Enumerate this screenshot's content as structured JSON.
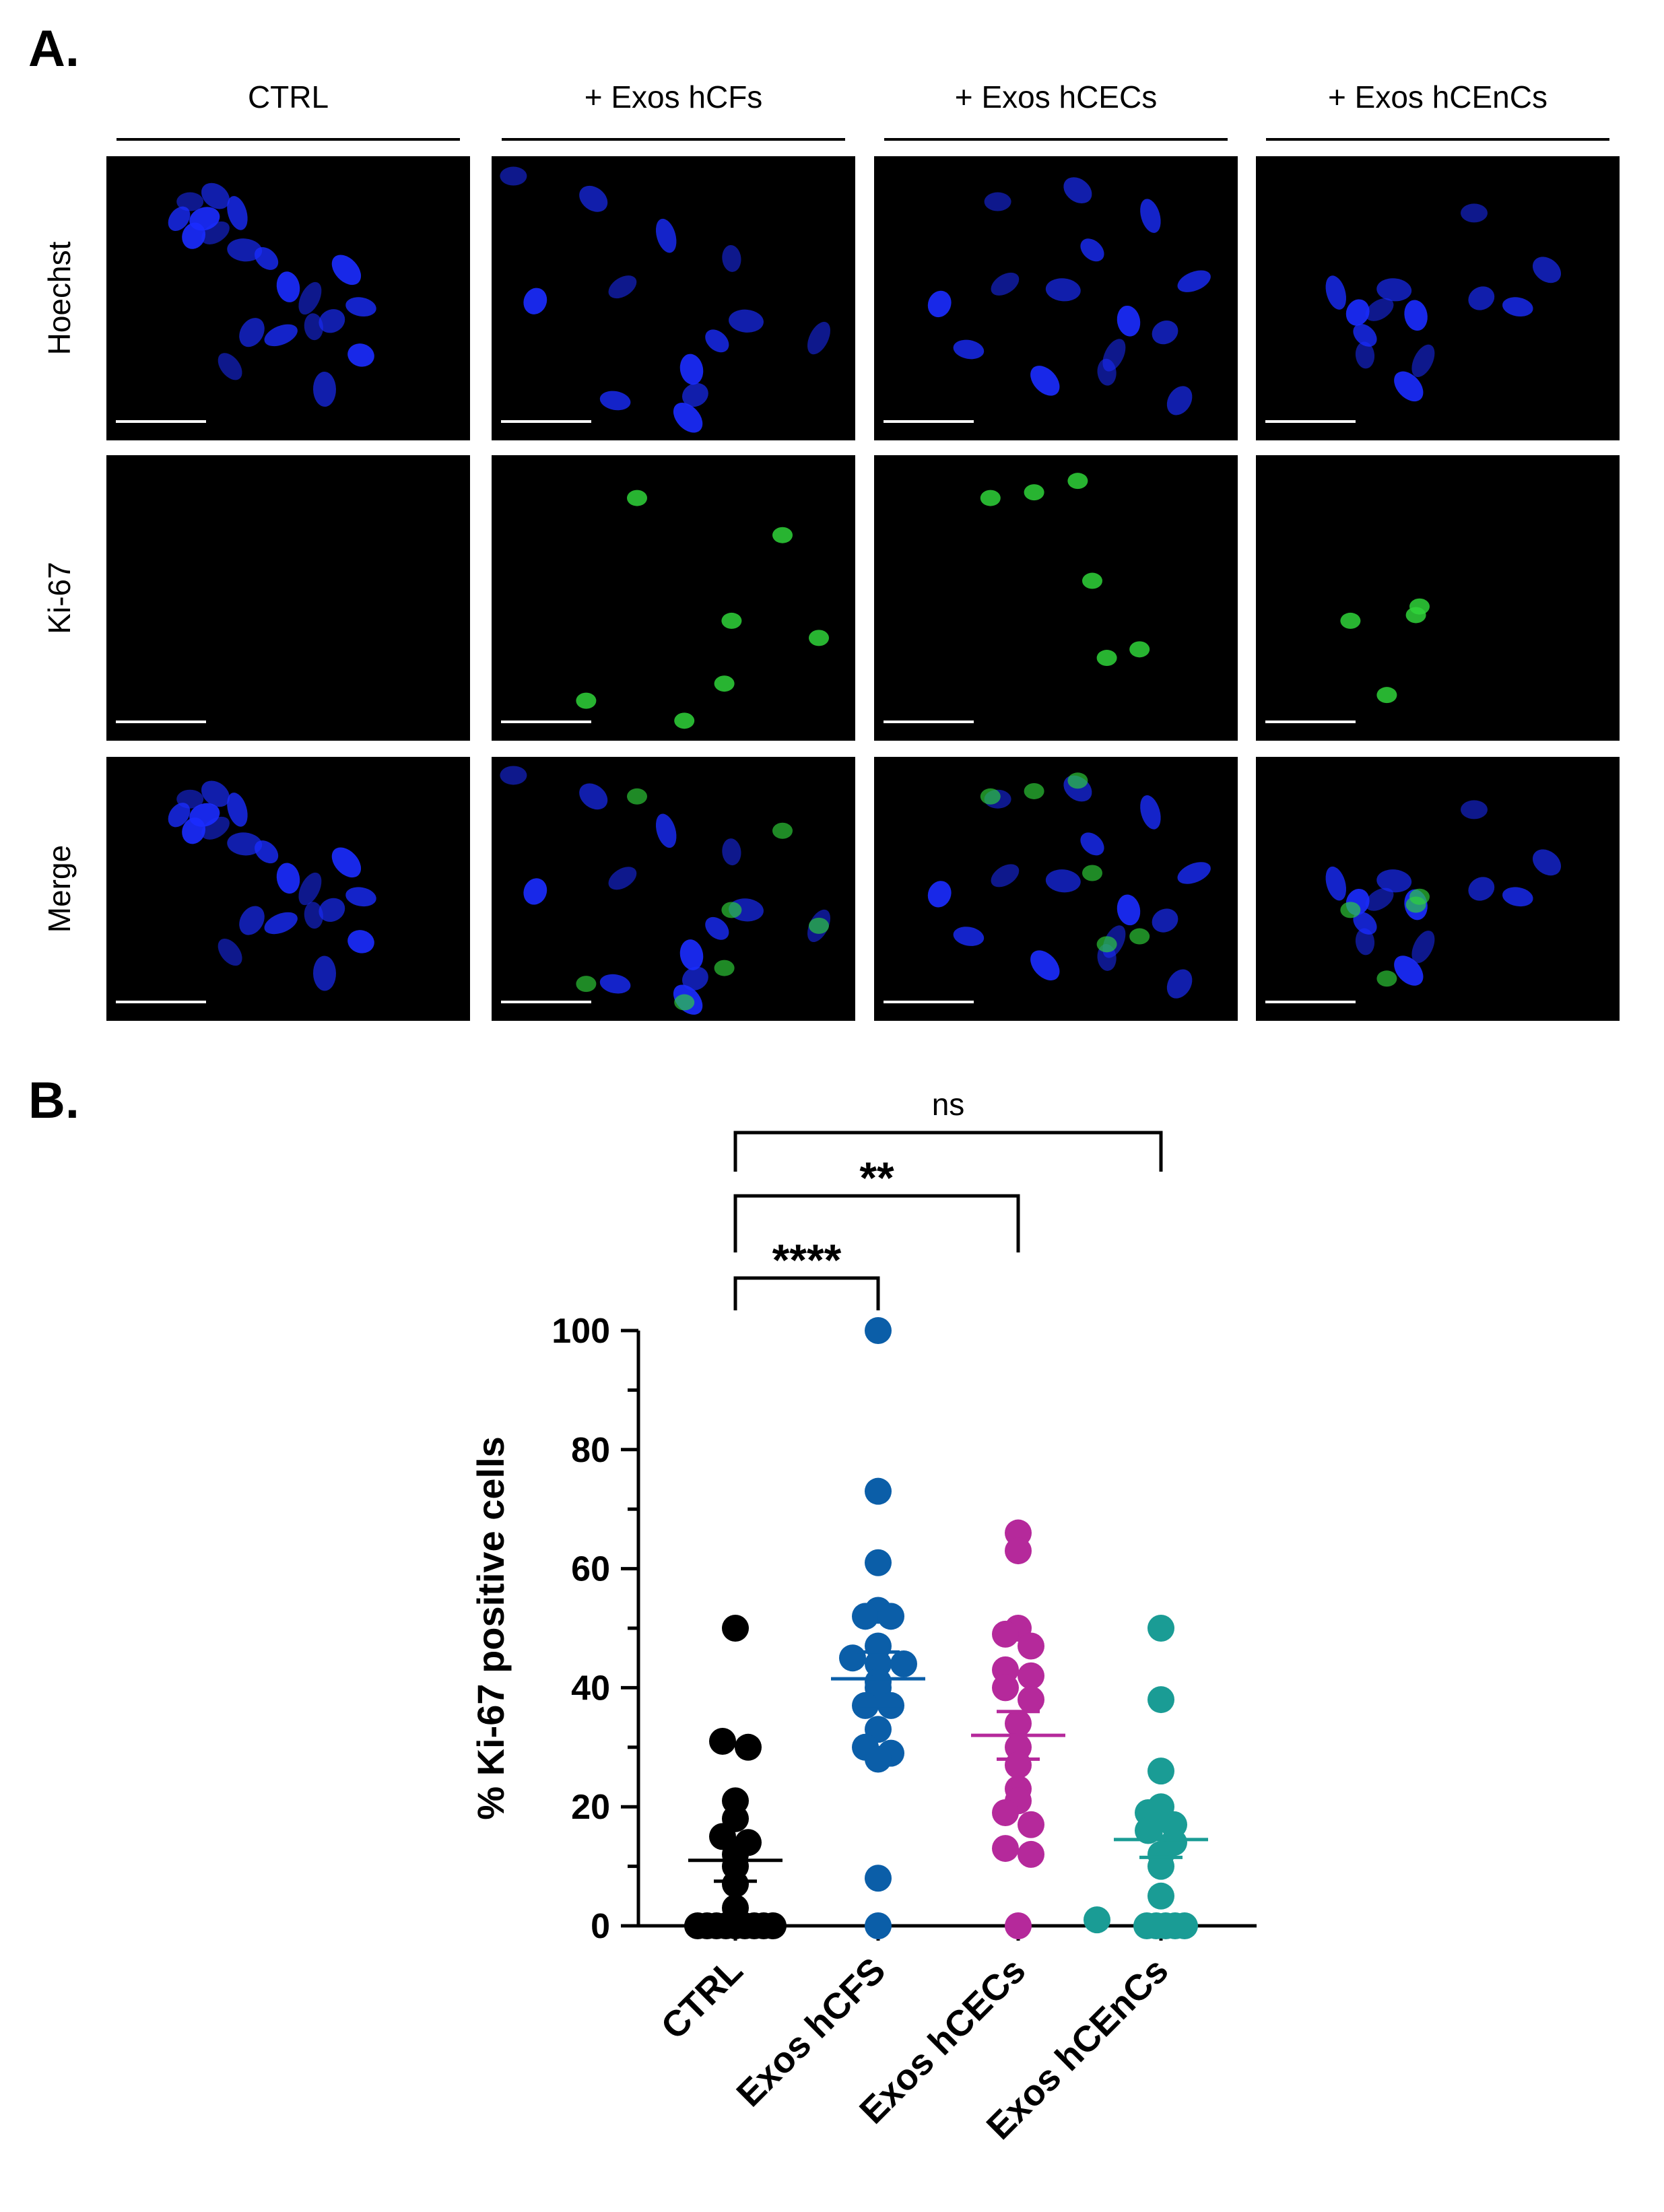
{
  "panelA": {
    "letter": "A.",
    "columns": [
      "CTRL",
      "+ Exos hCFs",
      "+ Exos hCECs",
      "+ Exos hCEnCs"
    ],
    "rows": [
      "Hoechst",
      "Ki-67",
      "Merge"
    ],
    "colors": {
      "nuclei": "#1a2cff",
      "ki67": "#2fd43a",
      "background": "#000000"
    }
  },
  "panelB": {
    "letter": "B."
  },
  "chart_data": {
    "type": "scatter",
    "title": "",
    "xlabel": "",
    "ylabel": "% Ki-67 positive cells",
    "ylim": [
      0,
      100
    ],
    "yticks": [
      0,
      20,
      40,
      60,
      80,
      100
    ],
    "categories": [
      "CTRL",
      "Exos hCFS",
      "Exos hCECs",
      "Exos hCEnCs"
    ],
    "series": [
      {
        "color": "#000000",
        "values": [
          50,
          31,
          30,
          21,
          18,
          15,
          14,
          12,
          10,
          7,
          3,
          0,
          0,
          0,
          0,
          0,
          0,
          0,
          0,
          0
        ],
        "mean": 11,
        "sem": 3.5
      },
      {
        "color": "#0b5ea8",
        "values": [
          100,
          73,
          61,
          53,
          52,
          52,
          47,
          45,
          44,
          44,
          41,
          40,
          37,
          37,
          33,
          30,
          29,
          28,
          8,
          0
        ],
        "mean": 41.5,
        "sem": 4.5
      },
      {
        "color": "#b5299b",
        "values": [
          66,
          63,
          50,
          49,
          47,
          43,
          42,
          40,
          38,
          34,
          30,
          27,
          23,
          21,
          19,
          17,
          13,
          12,
          0
        ],
        "mean": 32,
        "sem": 4
      },
      {
        "color": "#1a9c95",
        "values": [
          50,
          38,
          26,
          20,
          19,
          17,
          16,
          14,
          12,
          10,
          5,
          1,
          0,
          0,
          0,
          0,
          0
        ],
        "mean": 14.5,
        "sem": 3
      }
    ],
    "significance": [
      {
        "from": 0,
        "to": 1,
        "label": "****"
      },
      {
        "from": 0,
        "to": 2,
        "label": "**"
      },
      {
        "from": 0,
        "to": 3,
        "label": "ns"
      }
    ]
  }
}
